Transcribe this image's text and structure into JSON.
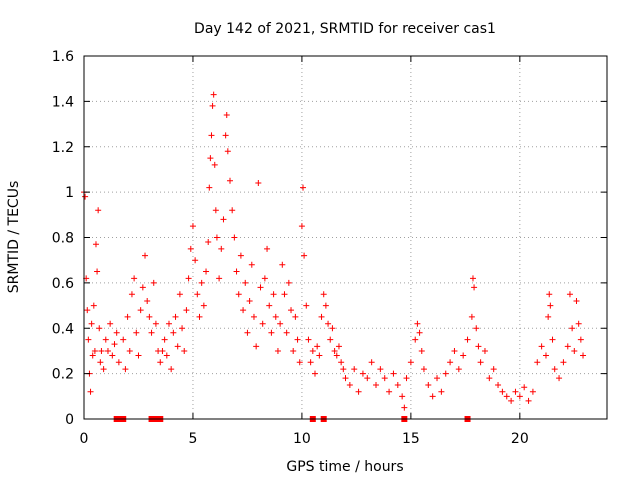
{
  "chart_data": {
    "type": "scatter",
    "title": "Day 142 of 2021, SRMTID for receiver cas1",
    "xlabel": "GPS time / hours",
    "ylabel": "SRMTID / TECUs",
    "xlim": [
      0,
      24
    ],
    "ylim": [
      0,
      1.6
    ],
    "xticks": [
      0,
      5,
      10,
      15,
      20
    ],
    "yticks": [
      0,
      0.2,
      0.4,
      0.6,
      0.8,
      1,
      1.2,
      1.4,
      1.6
    ],
    "xtick_labels": [
      "0",
      "5",
      "10",
      "15",
      "20"
    ],
    "ytick_labels": [
      "0",
      "0.2",
      "0.4",
      "0.6",
      "0.8",
      "1",
      "1.2",
      "1.4",
      "1.6"
    ],
    "grid": true,
    "marker": "+",
    "color": "#ff0000",
    "series": [
      {
        "name": "SRMTID",
        "points": [
          [
            0.0,
            1.0
          ],
          [
            0.05,
            0.98
          ],
          [
            0.1,
            0.62
          ],
          [
            0.15,
            0.48
          ],
          [
            0.2,
            0.35
          ],
          [
            0.25,
            0.2
          ],
          [
            0.3,
            0.12
          ],
          [
            0.35,
            0.42
          ],
          [
            0.4,
            0.28
          ],
          [
            0.45,
            0.5
          ],
          [
            0.5,
            0.3
          ],
          [
            0.55,
            0.77
          ],
          [
            0.6,
            0.65
          ],
          [
            0.65,
            0.92
          ],
          [
            0.7,
            0.4
          ],
          [
            0.75,
            0.25
          ],
          [
            0.8,
            0.3
          ],
          [
            0.9,
            0.22
          ],
          [
            1.0,
            0.35
          ],
          [
            1.1,
            0.3
          ],
          [
            1.2,
            0.42
          ],
          [
            1.3,
            0.28
          ],
          [
            1.4,
            0.33
          ],
          [
            1.5,
            0.38
          ],
          [
            1.6,
            0.25
          ],
          [
            1.8,
            0.35
          ],
          [
            1.9,
            0.22
          ],
          [
            2.0,
            0.45
          ],
          [
            2.1,
            0.3
          ],
          [
            2.2,
            0.55
          ],
          [
            2.3,
            0.62
          ],
          [
            2.4,
            0.38
          ],
          [
            2.5,
            0.28
          ],
          [
            2.6,
            0.48
          ],
          [
            2.7,
            0.58
          ],
          [
            2.8,
            0.72
          ],
          [
            2.9,
            0.52
          ],
          [
            3.0,
            0.45
          ],
          [
            3.1,
            0.38
          ],
          [
            3.2,
            0.6
          ],
          [
            3.3,
            0.42
          ],
          [
            3.4,
            0.3
          ],
          [
            3.5,
            0.25
          ],
          [
            3.6,
            0.3
          ],
          [
            3.7,
            0.35
          ],
          [
            3.8,
            0.28
          ],
          [
            3.9,
            0.42
          ],
          [
            4.0,
            0.22
          ],
          [
            4.1,
            0.38
          ],
          [
            4.2,
            0.45
          ],
          [
            4.3,
            0.32
          ],
          [
            4.4,
            0.55
          ],
          [
            4.5,
            0.4
          ],
          [
            4.6,
            0.3
          ],
          [
            4.7,
            0.48
          ],
          [
            4.8,
            0.62
          ],
          [
            4.9,
            0.75
          ],
          [
            5.0,
            0.85
          ],
          [
            5.1,
            0.7
          ],
          [
            5.2,
            0.55
          ],
          [
            5.3,
            0.45
          ],
          [
            5.4,
            0.6
          ],
          [
            5.5,
            0.5
          ],
          [
            5.6,
            0.65
          ],
          [
            5.7,
            0.78
          ],
          [
            5.75,
            1.02
          ],
          [
            5.8,
            1.15
          ],
          [
            5.85,
            1.25
          ],
          [
            5.9,
            1.38
          ],
          [
            5.95,
            1.43
          ],
          [
            6.0,
            1.12
          ],
          [
            6.05,
            0.92
          ],
          [
            6.1,
            0.8
          ],
          [
            6.2,
            0.62
          ],
          [
            6.3,
            0.75
          ],
          [
            6.4,
            0.88
          ],
          [
            6.5,
            1.25
          ],
          [
            6.55,
            1.34
          ],
          [
            6.6,
            1.18
          ],
          [
            6.7,
            1.05
          ],
          [
            6.8,
            0.92
          ],
          [
            6.9,
            0.8
          ],
          [
            7.0,
            0.65
          ],
          [
            7.1,
            0.55
          ],
          [
            7.2,
            0.72
          ],
          [
            7.3,
            0.48
          ],
          [
            7.4,
            0.6
          ],
          [
            7.5,
            0.38
          ],
          [
            7.6,
            0.52
          ],
          [
            7.7,
            0.68
          ],
          [
            7.8,
            0.45
          ],
          [
            7.9,
            0.32
          ],
          [
            8.0,
            1.04
          ],
          [
            8.1,
            0.58
          ],
          [
            8.2,
            0.42
          ],
          [
            8.3,
            0.62
          ],
          [
            8.4,
            0.75
          ],
          [
            8.5,
            0.5
          ],
          [
            8.6,
            0.38
          ],
          [
            8.7,
            0.55
          ],
          [
            8.8,
            0.45
          ],
          [
            8.9,
            0.3
          ],
          [
            9.0,
            0.42
          ],
          [
            9.1,
            0.68
          ],
          [
            9.2,
            0.55
          ],
          [
            9.3,
            0.38
          ],
          [
            9.4,
            0.6
          ],
          [
            9.5,
            0.48
          ],
          [
            9.6,
            0.3
          ],
          [
            9.7,
            0.45
          ],
          [
            9.8,
            0.35
          ],
          [
            9.9,
            0.25
          ],
          [
            10.0,
            0.85
          ],
          [
            10.05,
            1.02
          ],
          [
            10.1,
            0.72
          ],
          [
            10.2,
            0.5
          ],
          [
            10.3,
            0.35
          ],
          [
            10.4,
            0.25
          ],
          [
            10.5,
            0.3
          ],
          [
            10.6,
            0.2
          ],
          [
            10.7,
            0.32
          ],
          [
            10.8,
            0.28
          ],
          [
            10.9,
            0.45
          ],
          [
            11.0,
            0.55
          ],
          [
            11.1,
            0.5
          ],
          [
            11.2,
            0.42
          ],
          [
            11.3,
            0.35
          ],
          [
            11.4,
            0.4
          ],
          [
            11.5,
            0.3
          ],
          [
            11.6,
            0.28
          ],
          [
            11.7,
            0.32
          ],
          [
            11.8,
            0.25
          ],
          [
            11.9,
            0.22
          ],
          [
            12.0,
            0.18
          ],
          [
            12.2,
            0.15
          ],
          [
            12.4,
            0.22
          ],
          [
            12.6,
            0.12
          ],
          [
            12.8,
            0.2
          ],
          [
            13.0,
            0.18
          ],
          [
            13.2,
            0.25
          ],
          [
            13.4,
            0.15
          ],
          [
            13.6,
            0.22
          ],
          [
            13.8,
            0.18
          ],
          [
            14.0,
            0.12
          ],
          [
            14.2,
            0.2
          ],
          [
            14.4,
            0.15
          ],
          [
            14.6,
            0.1
          ],
          [
            14.7,
            0.05
          ],
          [
            14.8,
            0.18
          ],
          [
            15.0,
            0.25
          ],
          [
            15.2,
            0.35
          ],
          [
            15.3,
            0.42
          ],
          [
            15.4,
            0.38
          ],
          [
            15.5,
            0.3
          ],
          [
            15.6,
            0.22
          ],
          [
            15.8,
            0.15
          ],
          [
            16.0,
            0.1
          ],
          [
            16.2,
            0.18
          ],
          [
            16.4,
            0.12
          ],
          [
            16.6,
            0.2
          ],
          [
            16.8,
            0.25
          ],
          [
            17.0,
            0.3
          ],
          [
            17.2,
            0.22
          ],
          [
            17.4,
            0.28
          ],
          [
            17.6,
            0.35
          ],
          [
            17.8,
            0.45
          ],
          [
            17.85,
            0.62
          ],
          [
            17.9,
            0.58
          ],
          [
            18.0,
            0.4
          ],
          [
            18.1,
            0.32
          ],
          [
            18.2,
            0.25
          ],
          [
            18.4,
            0.3
          ],
          [
            18.6,
            0.18
          ],
          [
            18.8,
            0.22
          ],
          [
            19.0,
            0.15
          ],
          [
            19.2,
            0.12
          ],
          [
            19.4,
            0.1
          ],
          [
            19.6,
            0.08
          ],
          [
            19.8,
            0.12
          ],
          [
            20.0,
            0.1
          ],
          [
            20.2,
            0.14
          ],
          [
            20.4,
            0.08
          ],
          [
            20.6,
            0.12
          ],
          [
            20.8,
            0.25
          ],
          [
            21.0,
            0.32
          ],
          [
            21.2,
            0.28
          ],
          [
            21.3,
            0.45
          ],
          [
            21.35,
            0.55
          ],
          [
            21.4,
            0.5
          ],
          [
            21.5,
            0.35
          ],
          [
            21.6,
            0.22
          ],
          [
            21.8,
            0.18
          ],
          [
            22.0,
            0.25
          ],
          [
            22.2,
            0.32
          ],
          [
            22.3,
            0.55
          ],
          [
            22.4,
            0.4
          ],
          [
            22.5,
            0.3
          ],
          [
            22.6,
            0.52
          ],
          [
            22.7,
            0.42
          ],
          [
            22.8,
            0.35
          ],
          [
            22.9,
            0.28
          ]
        ]
      }
    ],
    "marker_bars": {
      "name": "bottom markers",
      "points": [
        [
          1.5,
          0
        ],
        [
          1.6,
          0
        ],
        [
          1.7,
          0
        ],
        [
          1.8,
          0
        ],
        [
          3.1,
          0
        ],
        [
          3.2,
          0
        ],
        [
          3.3,
          0
        ],
        [
          3.4,
          0
        ],
        [
          3.5,
          0
        ],
        [
          10.5,
          0
        ],
        [
          11.0,
          0
        ],
        [
          14.7,
          0
        ],
        [
          17.6,
          0
        ]
      ]
    }
  }
}
